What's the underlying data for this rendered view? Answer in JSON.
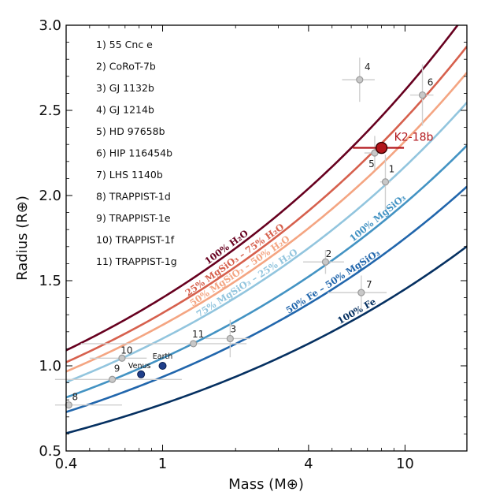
{
  "chart_data": {
    "type": "line",
    "xlabel": "Mass (M⊕)",
    "ylabel": "Radius (R⊕)",
    "xscale": "log",
    "xlim": [
      0.4,
      18
    ],
    "ylim": [
      0.5,
      3.0
    ],
    "xticks": [
      0.4,
      1,
      4,
      10
    ],
    "xtick_labels": [
      "0.4",
      "1",
      "4",
      "10"
    ],
    "yticks": [
      0.5,
      1.0,
      1.5,
      2.0,
      2.5,
      3.0
    ],
    "ytick_labels": [
      "0.5",
      "1.0",
      "1.5",
      "2.0",
      "2.5",
      "3.0"
    ],
    "series": [
      {
        "name": "100% H₂O",
        "color": "#67001f",
        "r1": 1.4,
        "exponent": 0.272
      },
      {
        "name": "25% MgSiO₃ – 75% H₂O",
        "color": "#d6604d",
        "r1": 1.31,
        "exponent": 0.272
      },
      {
        "name": "50% MgSiO₃ – 50% H₂O",
        "color": "#f4a582",
        "r1": 1.24,
        "exponent": 0.272
      },
      {
        "name": "75% MgSiO₃ – 25% H₂O",
        "color": "#92c5de",
        "r1": 1.16,
        "exponent": 0.272
      },
      {
        "name": "100% MgSiO₃",
        "color": "#4393c3",
        "r1": 1.045,
        "exponent": 0.272
      },
      {
        "name": "50% Fe – 50% MgSiO₃",
        "color": "#2166ac",
        "r1": 0.935,
        "exponent": 0.272
      },
      {
        "name": "100% Fe",
        "color": "#053061",
        "r1": 0.775,
        "exponent": 0.272
      }
    ],
    "planets": [
      {
        "id": "1",
        "name": "55 Cnc e",
        "mass": 8.3,
        "radius": 2.08,
        "mass_err": 0.4,
        "radius_err": 0.16
      },
      {
        "id": "2",
        "name": "CoRoT-7b",
        "mass": 4.7,
        "radius": 1.61,
        "mass_err": 0.9,
        "radius_err": 0.07
      },
      {
        "id": "3",
        "name": "GJ 1132b",
        "mass": 1.9,
        "radius": 1.16,
        "mass_err": 0.4,
        "radius_err": 0.11
      },
      {
        "id": "4",
        "name": "GJ 1214b",
        "mass": 6.5,
        "radius": 2.68,
        "mass_err": 1.0,
        "radius_err": 0.13
      },
      {
        "id": "5",
        "name": "HD 97658b",
        "mass": 7.5,
        "radius": 2.25,
        "mass_err": 0.7,
        "radius_err": 0.1
      },
      {
        "id": "6",
        "name": "HIP 116454b",
        "mass": 11.8,
        "radius": 2.59,
        "mass_err": 1.3,
        "radius_err": 0.18
      },
      {
        "id": "7",
        "name": "LHS 1140b",
        "mass": 6.6,
        "radius": 1.43,
        "mass_err": 1.8,
        "radius_err": 0.1
      },
      {
        "id": "8",
        "name": "TRAPPIST-1d",
        "mass": 0.41,
        "radius": 0.77,
        "mass_err": 0.27,
        "radius_err": 0.02
      },
      {
        "id": "9",
        "name": "TRAPPIST-1e",
        "mass": 0.62,
        "radius": 0.92,
        "mass_err": 0.58,
        "radius_err": 0.02
      },
      {
        "id": "10",
        "name": "TRAPPIST-1f",
        "mass": 0.68,
        "radius": 1.045,
        "mass_err": 0.18,
        "radius_err": 0.02
      },
      {
        "id": "11",
        "name": "TRAPPIST-1g",
        "mass": 1.34,
        "radius": 1.13,
        "mass_err": 0.88,
        "radius_err": 0.02
      }
    ],
    "solar_system": [
      {
        "name": "Venus",
        "mass": 0.815,
        "radius": 0.95,
        "color": "#1f3f8a"
      },
      {
        "name": "Earth",
        "mass": 1.0,
        "radius": 1.0,
        "color": "#1f3f8a"
      }
    ],
    "highlight": {
      "name": "K2-18b",
      "mass": 8.0,
      "radius": 2.28,
      "mass_err": 1.9,
      "radius_err": 0.02,
      "color": "#b2161b"
    }
  }
}
